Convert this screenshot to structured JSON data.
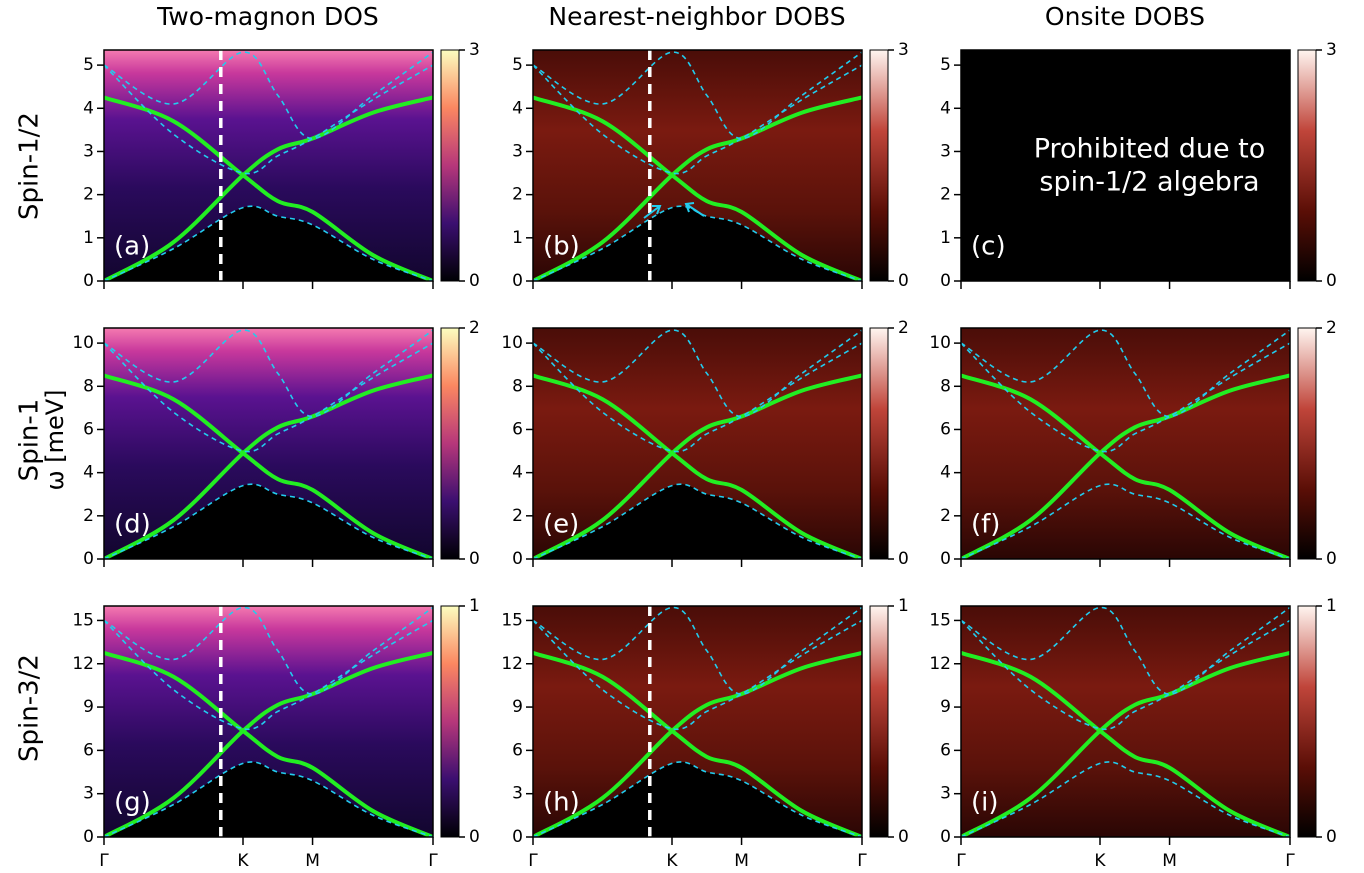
{
  "column_titles": [
    "Two-magnon DOS",
    "Nearest-neighbor DOBS",
    "Onsite DOBS"
  ],
  "row_labels": [
    "Spin-1/2",
    "Spin-1",
    "Spin-3/2"
  ],
  "ylabel": "ω [meV]",
  "chart_data": [
    {
      "type": "heatmap",
      "label": "(a)",
      "colormap": "magma",
      "x": [
        0,
        0.667,
        1.333,
        1.667,
        2,
        2.58,
        3.155
      ],
      "xlim": [
        0,
        3.155
      ],
      "xticks": [
        0,
        1.333,
        2,
        3.155
      ],
      "ylim": [
        0,
        5.35
      ],
      "yticks": [
        0,
        1,
        2,
        3,
        4,
        5
      ],
      "clim": [
        0,
        3
      ],
      "cticks": [
        0,
        3
      ],
      "vline": 1.12,
      "series": [
        {
          "color": "#22ee22",
          "style": "solid",
          "values": [
            0,
            0.9,
            2.45,
            3.05,
            3.3,
            3.9,
            4.25
          ]
        },
        {
          "color": "#22ee22",
          "style": "solid",
          "values": [
            4.25,
            3.7,
            2.45,
            1.85,
            1.6,
            0.6,
            0
          ]
        },
        {
          "color": "#22ccee",
          "style": "dashed",
          "values": [
            0,
            0.75,
            1.7,
            1.5,
            1.3,
            0.5,
            0
          ]
        },
        {
          "color": "#22ccee",
          "style": "dashed",
          "values": [
            5,
            3.4,
            2.5,
            2.9,
            3.3,
            4.2,
            5
          ]
        },
        {
          "color": "#22ccee",
          "style": "dashed",
          "values": [
            5,
            4.1,
            5.3,
            4.3,
            3.3,
            4.3,
            5.3
          ]
        }
      ]
    },
    {
      "type": "heatmap",
      "label": "(b)",
      "colormap": "reds",
      "x": [
        0,
        0.667,
        1.333,
        1.667,
        2,
        2.58,
        3.155
      ],
      "xlim": [
        0,
        3.155
      ],
      "xticks": [
        0,
        1.333,
        2,
        3.155
      ],
      "ylim": [
        0,
        5.35
      ],
      "yticks": [
        0,
        1,
        2,
        3,
        4,
        5
      ],
      "clim": [
        0,
        3
      ],
      "cticks": [
        0,
        3
      ],
      "vline": 1.12,
      "series": [
        {
          "color": "#22ee22",
          "style": "solid",
          "values": [
            0,
            0.9,
            2.45,
            3.05,
            3.3,
            3.9,
            4.25
          ]
        },
        {
          "color": "#22ee22",
          "style": "solid",
          "values": [
            4.25,
            3.7,
            2.45,
            1.85,
            1.6,
            0.6,
            0
          ]
        },
        {
          "color": "#22ccee",
          "style": "dashed",
          "values": [
            0,
            0.75,
            1.7,
            1.5,
            1.3,
            0.5,
            0
          ]
        },
        {
          "color": "#22ccee",
          "style": "dashed",
          "values": [
            5,
            3.4,
            2.5,
            2.9,
            3.3,
            4.2,
            5
          ]
        },
        {
          "color": "#22ccee",
          "style": "dashed",
          "values": [
            5,
            4.1,
            5.3,
            4.3,
            3.3,
            4.3,
            5.3
          ]
        }
      ]
    },
    {
      "type": "heatmap",
      "label": "(c)",
      "colormap": "black",
      "annotation": [
        "Prohibited due to",
        "spin-1/2 algebra"
      ],
      "x": [
        0,
        0.667,
        1.333,
        1.667,
        2,
        2.58,
        3.155
      ],
      "xlim": [
        0,
        3.155
      ],
      "xticks": [
        0,
        1.333,
        2,
        3.155
      ],
      "ylim": [
        0,
        5.35
      ],
      "yticks": [
        0,
        1,
        2,
        3,
        4,
        5
      ],
      "clim": [
        0,
        3
      ],
      "cticks": [
        0,
        3
      ],
      "series": []
    },
    {
      "type": "heatmap",
      "label": "(d)",
      "colormap": "magma",
      "x": [
        0,
        0.667,
        1.333,
        1.667,
        2,
        2.58,
        3.155
      ],
      "xlim": [
        0,
        3.155
      ],
      "xticks": [
        0,
        1.333,
        2,
        3.155
      ],
      "ylim": [
        0,
        10.7
      ],
      "yticks": [
        0,
        2,
        4,
        6,
        8,
        10
      ],
      "clim": [
        0,
        2
      ],
      "cticks": [
        0,
        2
      ],
      "series": [
        {
          "color": "#22ee22",
          "style": "solid",
          "values": [
            0,
            1.8,
            4.9,
            6.1,
            6.6,
            7.8,
            8.5
          ]
        },
        {
          "color": "#22ee22",
          "style": "solid",
          "values": [
            8.5,
            7.4,
            4.9,
            3.7,
            3.2,
            1.2,
            0
          ]
        },
        {
          "color": "#22ccee",
          "style": "dashed",
          "values": [
            0,
            1.5,
            3.4,
            3.0,
            2.6,
            1.0,
            0
          ]
        },
        {
          "color": "#22ccee",
          "style": "dashed",
          "values": [
            10,
            6.8,
            5,
            5.8,
            6.6,
            8.4,
            10
          ]
        },
        {
          "color": "#22ccee",
          "style": "dashed",
          "values": [
            10,
            8.2,
            10.6,
            8.6,
            6.6,
            8.6,
            10.6
          ]
        }
      ]
    },
    {
      "type": "heatmap",
      "label": "(e)",
      "colormap": "reds",
      "x": [
        0,
        0.667,
        1.333,
        1.667,
        2,
        2.58,
        3.155
      ],
      "xlim": [
        0,
        3.155
      ],
      "xticks": [
        0,
        1.333,
        2,
        3.155
      ],
      "ylim": [
        0,
        10.7
      ],
      "yticks": [
        0,
        2,
        4,
        6,
        8,
        10
      ],
      "clim": [
        0,
        2
      ],
      "cticks": [
        0,
        2
      ],
      "series": [
        {
          "color": "#22ee22",
          "style": "solid",
          "values": [
            0,
            1.8,
            4.9,
            6.1,
            6.6,
            7.8,
            8.5
          ]
        },
        {
          "color": "#22ee22",
          "style": "solid",
          "values": [
            8.5,
            7.4,
            4.9,
            3.7,
            3.2,
            1.2,
            0
          ]
        },
        {
          "color": "#22ccee",
          "style": "dashed",
          "values": [
            0,
            1.5,
            3.4,
            3.0,
            2.6,
            1.0,
            0
          ]
        },
        {
          "color": "#22ccee",
          "style": "dashed",
          "values": [
            10,
            6.8,
            5,
            5.8,
            6.6,
            8.4,
            10
          ]
        },
        {
          "color": "#22ccee",
          "style": "dashed",
          "values": [
            10,
            8.2,
            10.6,
            8.6,
            6.6,
            8.6,
            10.6
          ]
        }
      ]
    },
    {
      "type": "heatmap",
      "label": "(f)",
      "colormap": "reds",
      "x": [
        0,
        0.667,
        1.333,
        1.667,
        2,
        2.58,
        3.155
      ],
      "xlim": [
        0,
        3.155
      ],
      "xticks": [
        0,
        1.333,
        2,
        3.155
      ],
      "ylim": [
        0,
        10.7
      ],
      "yticks": [
        0,
        2,
        4,
        6,
        8,
        10
      ],
      "clim": [
        0,
        2
      ],
      "cticks": [
        0,
        2
      ],
      "series": [
        {
          "color": "#22ee22",
          "style": "solid",
          "values": [
            0,
            1.8,
            4.9,
            6.1,
            6.6,
            7.8,
            8.5
          ]
        },
        {
          "color": "#22ee22",
          "style": "solid",
          "values": [
            8.5,
            7.4,
            4.9,
            3.7,
            3.2,
            1.2,
            0
          ]
        },
        {
          "color": "#22ccee",
          "style": "dashed",
          "values": [
            0,
            1.5,
            3.4,
            3.0,
            2.6,
            1.0,
            0
          ]
        },
        {
          "color": "#22ccee",
          "style": "dashed",
          "values": [
            10,
            6.8,
            5,
            5.8,
            6.6,
            8.4,
            10
          ]
        },
        {
          "color": "#22ccee",
          "style": "dashed",
          "values": [
            10,
            8.2,
            10.6,
            8.6,
            6.6,
            8.6,
            10.6
          ]
        }
      ]
    },
    {
      "type": "heatmap",
      "label": "(g)",
      "colormap": "magma",
      "x": [
        0,
        0.667,
        1.333,
        1.667,
        2,
        2.58,
        3.155
      ],
      "xlim": [
        0,
        3.155
      ],
      "xticks": [
        {
          "value": 0,
          "label": "Γ"
        },
        {
          "value": 1.333,
          "label": "K"
        },
        {
          "value": 2,
          "label": "M"
        },
        {
          "value": 3.155,
          "label": "Γ"
        }
      ],
      "ylim": [
        0,
        16
      ],
      "yticks": [
        0,
        3,
        6,
        9,
        12,
        15
      ],
      "clim": [
        0,
        1
      ],
      "cticks": [
        0,
        1
      ],
      "vline": 1.12,
      "series": [
        {
          "color": "#22ee22",
          "style": "solid",
          "values": [
            0,
            2.7,
            7.35,
            9.15,
            9.9,
            11.7,
            12.75
          ]
        },
        {
          "color": "#22ee22",
          "style": "solid",
          "values": [
            12.75,
            11.1,
            7.35,
            5.55,
            4.8,
            1.8,
            0
          ]
        },
        {
          "color": "#22ccee",
          "style": "dashed",
          "values": [
            0,
            2.25,
            5.1,
            4.5,
            3.9,
            1.5,
            0
          ]
        },
        {
          "color": "#22ccee",
          "style": "dashed",
          "values": [
            15,
            10.2,
            7.5,
            8.7,
            9.9,
            12.6,
            15
          ]
        },
        {
          "color": "#22ccee",
          "style": "dashed",
          "values": [
            15,
            12.3,
            15.9,
            12.9,
            9.9,
            12.9,
            15.9
          ]
        }
      ]
    },
    {
      "type": "heatmap",
      "label": "(h)",
      "colormap": "reds",
      "x": [
        0,
        0.667,
        1.333,
        1.667,
        2,
        2.58,
        3.155
      ],
      "xlim": [
        0,
        3.155
      ],
      "xticks": [
        {
          "value": 0,
          "label": "Γ"
        },
        {
          "value": 1.333,
          "label": "K"
        },
        {
          "value": 2,
          "label": "M"
        },
        {
          "value": 3.155,
          "label": "Γ"
        }
      ],
      "ylim": [
        0,
        16
      ],
      "yticks": [
        0,
        3,
        6,
        9,
        12,
        15
      ],
      "clim": [
        0,
        1
      ],
      "cticks": [
        0,
        1
      ],
      "vline": 1.12,
      "series": [
        {
          "color": "#22ee22",
          "style": "solid",
          "values": [
            0,
            2.7,
            7.35,
            9.15,
            9.9,
            11.7,
            12.75
          ]
        },
        {
          "color": "#22ee22",
          "style": "solid",
          "values": [
            12.75,
            11.1,
            7.35,
            5.55,
            4.8,
            1.8,
            0
          ]
        },
        {
          "color": "#22ccee",
          "style": "dashed",
          "values": [
            0,
            2.25,
            5.1,
            4.5,
            3.9,
            1.5,
            0
          ]
        },
        {
          "color": "#22ccee",
          "style": "dashed",
          "values": [
            15,
            10.2,
            7.5,
            8.7,
            9.9,
            12.6,
            15
          ]
        },
        {
          "color": "#22ccee",
          "style": "dashed",
          "values": [
            15,
            12.3,
            15.9,
            12.9,
            9.9,
            12.9,
            15.9
          ]
        }
      ]
    },
    {
      "type": "heatmap",
      "label": "(i)",
      "colormap": "reds",
      "x": [
        0,
        0.667,
        1.333,
        1.667,
        2,
        2.58,
        3.155
      ],
      "xlim": [
        0,
        3.155
      ],
      "xticks": [
        {
          "value": 0,
          "label": "Γ"
        },
        {
          "value": 1.333,
          "label": "K"
        },
        {
          "value": 2,
          "label": "M"
        },
        {
          "value": 3.155,
          "label": "Γ"
        }
      ],
      "ylim": [
        0,
        16
      ],
      "yticks": [
        0,
        3,
        6,
        9,
        12,
        15
      ],
      "clim": [
        0,
        1
      ],
      "cticks": [
        0,
        1
      ],
      "series": [
        {
          "color": "#22ee22",
          "style": "solid",
          "values": [
            0,
            2.7,
            7.35,
            9.15,
            9.9,
            11.7,
            12.75
          ]
        },
        {
          "color": "#22ee22",
          "style": "solid",
          "values": [
            12.75,
            11.1,
            7.35,
            5.55,
            4.8,
            1.8,
            0
          ]
        },
        {
          "color": "#22ccee",
          "style": "dashed",
          "values": [
            0,
            2.25,
            5.1,
            4.5,
            3.9,
            1.5,
            0
          ]
        },
        {
          "color": "#22ccee",
          "style": "dashed",
          "values": [
            15,
            10.2,
            7.5,
            8.7,
            9.9,
            12.6,
            15
          ]
        },
        {
          "color": "#22ccee",
          "style": "dashed",
          "values": [
            15,
            12.3,
            15.9,
            12.9,
            9.9,
            12.9,
            15.9
          ]
        }
      ]
    }
  ]
}
